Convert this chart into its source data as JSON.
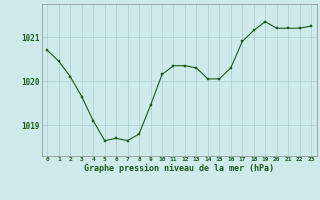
{
  "x": [
    0,
    1,
    2,
    3,
    4,
    5,
    6,
    7,
    8,
    9,
    10,
    11,
    12,
    13,
    14,
    15,
    16,
    17,
    18,
    19,
    20,
    21,
    22,
    23
  ],
  "y": [
    1020.7,
    1020.45,
    1020.1,
    1019.65,
    1019.1,
    1018.65,
    1018.7,
    1018.65,
    1018.8,
    1019.45,
    1020.15,
    1020.35,
    1020.35,
    1020.3,
    1020.05,
    1020.05,
    1020.3,
    1020.9,
    1021.15,
    1021.35,
    1021.2,
    1021.2,
    1021.2,
    1021.25
  ],
  "line_color": "#1a5c1a",
  "marker_color": "#1a5c1a",
  "bg_color": "#ceeaea",
  "grid_color": "#aacece",
  "xlabel": "Graphe pression niveau de la mer (hPa)",
  "xlabel_color": "#1a5c1a",
  "tick_color": "#1a5c1a",
  "ylim": [
    1018.3,
    1021.75
  ],
  "yticks": [
    1019,
    1020,
    1021
  ],
  "xticks": [
    0,
    1,
    2,
    3,
    4,
    5,
    6,
    7,
    8,
    9,
    10,
    11,
    12,
    13,
    14,
    15,
    16,
    17,
    18,
    19,
    20,
    21,
    22,
    23
  ],
  "xlim": [
    -0.5,
    23.5
  ]
}
